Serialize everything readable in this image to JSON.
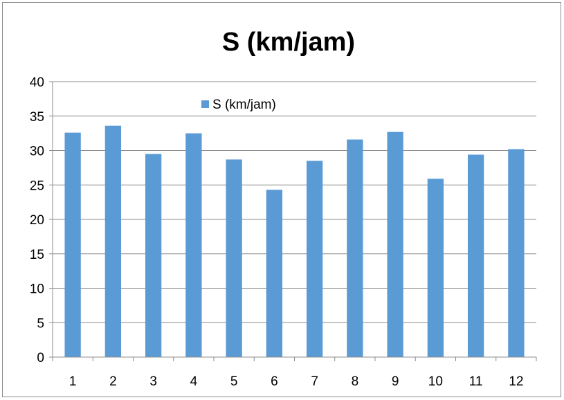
{
  "chart_data": {
    "type": "bar",
    "title": "S (km/jam)",
    "xlabel": "",
    "ylabel": "",
    "categories": [
      "1",
      "2",
      "3",
      "4",
      "5",
      "6",
      "7",
      "8",
      "9",
      "10",
      "11",
      "12"
    ],
    "series": [
      {
        "name": "S (km/jam)",
        "values": [
          32.6,
          33.6,
          29.5,
          32.5,
          28.7,
          24.3,
          28.5,
          31.6,
          32.7,
          25.9,
          29.4,
          30.2
        ],
        "color": "#5b9bd5"
      }
    ],
    "ylim": [
      0,
      40
    ],
    "yticks": [
      0,
      5,
      10,
      15,
      20,
      25,
      30,
      35,
      40
    ],
    "grid": true,
    "legend_position": "top-left-inside"
  }
}
